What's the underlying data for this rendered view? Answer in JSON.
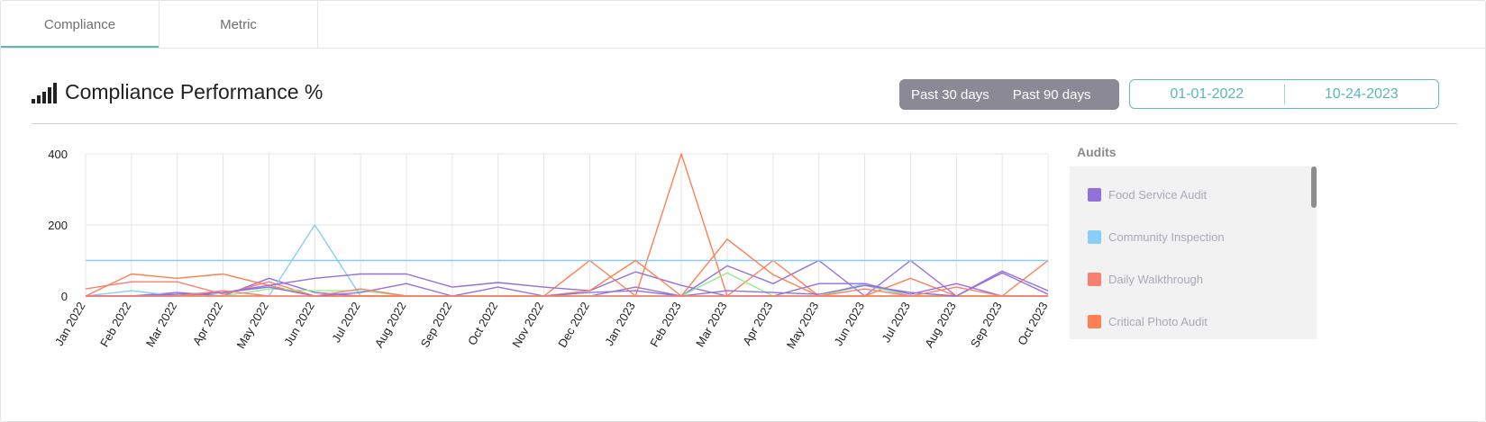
{
  "tabs": [
    {
      "label": "Compliance",
      "active": true
    },
    {
      "label": "Metric",
      "active": false
    }
  ],
  "header": {
    "title": "Compliance Performance %",
    "icon": "signal-bars-icon",
    "range_buttons": [
      "Past 30 days",
      "Past 90 days"
    ],
    "date_start": "01-01-2022",
    "date_end": "10-24-2023"
  },
  "legend": {
    "title": "Audits",
    "items": [
      {
        "label": "Food Service Audit",
        "color": "#9370db"
      },
      {
        "label": "Community Inspection",
        "color": "#87cefa"
      },
      {
        "label": "Daily Walkthrough",
        "color": "#fa8072"
      },
      {
        "label": "Critical Photo Audit",
        "color": "#ff7f50"
      }
    ]
  },
  "chart_data": {
    "type": "line",
    "categories": [
      "Jan 2022",
      "Feb 2022",
      "Mar 2022",
      "Apr 2022",
      "May 2022",
      "Jun 2022",
      "Jul 2022",
      "Aug 2022",
      "Sep 2022",
      "Oct 2022",
      "Nov 2022",
      "Dec 2022",
      "Jan 2023",
      "Feb 2023",
      "Mar 2023",
      "Apr 2023",
      "May 2023",
      "Jun 2023",
      "Jul 2023",
      "Aug 2023",
      "Sep 2023",
      "Oct 2023"
    ],
    "ylim": [
      0,
      400
    ],
    "yticks": [
      0,
      200,
      400
    ],
    "grid": true,
    "legend_position": "right",
    "series": [
      {
        "name": "Food Service Audit",
        "color": "#9370db",
        "values": [
          0,
          0,
          10,
          0,
          50,
          10,
          0,
          0,
          0,
          0,
          0,
          0,
          25,
          0,
          85,
          35,
          100,
          0,
          100,
          0,
          70,
          15
        ]
      },
      {
        "name": "Community Inspection",
        "color": "#87cefa",
        "values": [
          0,
          15,
          0,
          0,
          0,
          200,
          0,
          0,
          0,
          0,
          0,
          0,
          0,
          0,
          0,
          0,
          0,
          35,
          0,
          0,
          0,
          0
        ]
      },
      {
        "name": "Daily Walkthrough",
        "color": "#fa8072",
        "values": [
          20,
          40,
          40,
          5,
          40,
          0,
          0,
          0,
          0,
          0,
          0,
          0,
          0,
          0,
          0,
          0,
          0,
          0,
          0,
          0,
          0,
          0
        ]
      },
      {
        "name": "Critical Photo Audit",
        "color": "#ff7f50",
        "values": [
          0,
          62,
          50,
          62,
          30,
          0,
          0,
          0,
          0,
          0,
          0,
          100,
          0,
          400,
          0,
          100,
          0,
          0,
          50,
          0,
          0,
          100
        ]
      },
      {
        "color": "#87cefa",
        "values": [
          100,
          100,
          100,
          100,
          100,
          100,
          100,
          100,
          100,
          100,
          100,
          100,
          100,
          100,
          100,
          100,
          100,
          100,
          100,
          100,
          100,
          100
        ]
      },
      {
        "color": "#9370db",
        "values": [
          0,
          0,
          0,
          10,
          30,
          50,
          62,
          62,
          25,
          38,
          25,
          15,
          68,
          30,
          0,
          0,
          35,
          35,
          5,
          35,
          0,
          0
        ]
      },
      {
        "color": "#90ee90",
        "values": [
          0,
          0,
          0,
          0,
          20,
          15,
          15,
          0,
          0,
          0,
          0,
          0,
          0,
          0,
          65,
          0,
          0,
          30,
          0,
          0,
          0,
          0
        ]
      },
      {
        "color": "#ff7f50",
        "values": [
          0,
          0,
          0,
          0,
          0,
          0,
          0,
          0,
          0,
          0,
          0,
          15,
          100,
          0,
          160,
          60,
          0,
          0,
          0,
          0,
          0,
          0
        ]
      },
      {
        "color": "#9370db",
        "values": [
          0,
          0,
          5,
          10,
          25,
          0,
          10,
          35,
          0,
          25,
          0,
          10,
          15,
          0,
          15,
          10,
          5,
          30,
          10,
          0,
          65,
          5
        ]
      },
      {
        "color": "#fa8072",
        "values": [
          0,
          0,
          0,
          15,
          0,
          0,
          20,
          0,
          0,
          0,
          0,
          0,
          0,
          0,
          0,
          0,
          0,
          20,
          0,
          25,
          0,
          0
        ]
      }
    ]
  }
}
